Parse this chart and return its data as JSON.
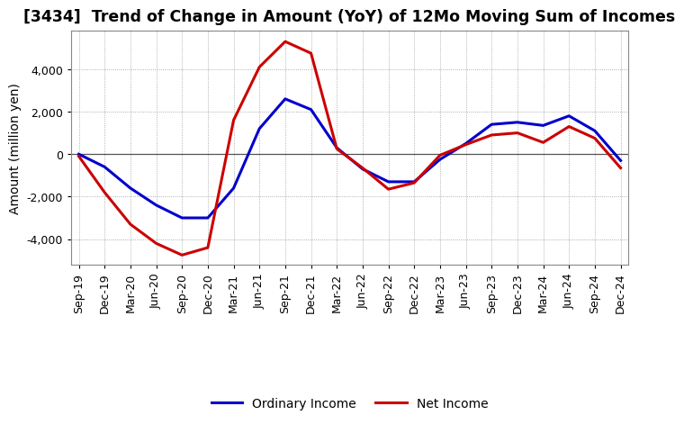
{
  "title": "[3434]  Trend of Change in Amount (YoY) of 12Mo Moving Sum of Incomes",
  "ylabel": "Amount (million yen)",
  "labels": [
    "Sep-19",
    "Dec-19",
    "Mar-20",
    "Jun-20",
    "Sep-20",
    "Dec-20",
    "Mar-21",
    "Jun-21",
    "Sep-21",
    "Dec-21",
    "Mar-22",
    "Jun-22",
    "Sep-22",
    "Dec-22",
    "Mar-23",
    "Jun-23",
    "Sep-23",
    "Dec-23",
    "Mar-24",
    "Jun-24",
    "Sep-24",
    "Dec-24"
  ],
  "ordinary_income": [
    0,
    -600,
    -1600,
    -2400,
    -3000,
    -3000,
    -1600,
    1200,
    2600,
    2100,
    300,
    -700,
    -1300,
    -1300,
    -250,
    500,
    1400,
    1500,
    1350,
    1800,
    1100,
    -300
  ],
  "net_income": [
    -100,
    -1800,
    -3300,
    -4200,
    -4750,
    -4400,
    1600,
    4100,
    5300,
    4750,
    250,
    -650,
    -1650,
    -1350,
    -50,
    450,
    900,
    1000,
    550,
    1300,
    750,
    -650
  ],
  "ordinary_income_color": "#0000CC",
  "net_income_color": "#CC0000",
  "ylim": [
    -5200,
    5800
  ],
  "yticks": [
    -4000,
    -2000,
    0,
    2000,
    4000
  ],
  "background_color": "#FFFFFF",
  "grid_color": "#999999",
  "title_fontsize": 12.5,
  "axis_fontsize": 10,
  "tick_fontsize": 9,
  "legend_fontsize": 10,
  "linewidth": 2.2
}
